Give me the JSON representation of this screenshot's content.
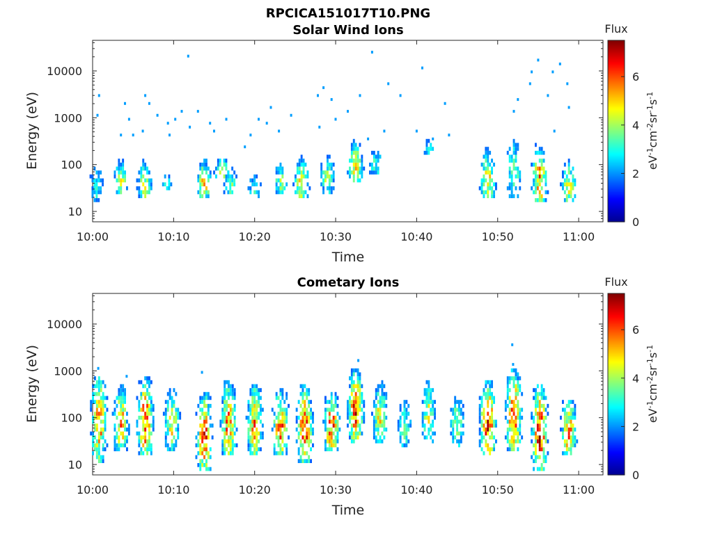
{
  "figure_title": "RPCICA151017T10.PNG",
  "colormap": [
    "#00008f",
    "#0000ff",
    "#0080ff",
    "#00ffff",
    "#80ff80",
    "#ffff00",
    "#ff8000",
    "#ff0000",
    "#800000"
  ],
  "chart_data": [
    {
      "type": "heatmap",
      "title": "Solar Wind Ions",
      "xlabel": "Time",
      "ylabel": "Energy (eV)",
      "x_ticks": [
        "10:00",
        "10:10",
        "10:20",
        "10:30",
        "10:40",
        "10:50",
        "11:00"
      ],
      "x_range_minutes": [
        0,
        63
      ],
      "y_scale": "log",
      "y_ticks": [
        10,
        100,
        1000,
        10000
      ],
      "y_tick_labels": [
        "10",
        "100",
        "1000",
        "10000"
      ],
      "y_range": [
        6,
        45000
      ],
      "colorbar": {
        "title": "Flux",
        "unit": "eV-1cm-2sr-1s-1",
        "ticks": [
          0,
          2,
          4,
          6
        ],
        "range": [
          0,
          7.5
        ]
      },
      "clusters": [
        {
          "t": 0.5,
          "e_lo": 15,
          "e_hi": 120,
          "peak": 3.2
        },
        {
          "t": 3.5,
          "e_lo": 25,
          "e_hi": 120,
          "peak": 4.5
        },
        {
          "t": 6.5,
          "e_lo": 18,
          "e_hi": 110,
          "peak": 5.0
        },
        {
          "t": 9.2,
          "e_lo": 30,
          "e_hi": 70,
          "peak": 3.0
        },
        {
          "t": 13.8,
          "e_lo": 20,
          "e_hi": 120,
          "peak": 5.2
        },
        {
          "t": 16.0,
          "e_lo": 50,
          "e_hi": 140,
          "peak": 4.8
        },
        {
          "t": 17.0,
          "e_lo": 25,
          "e_hi": 90,
          "peak": 4.0
        },
        {
          "t": 20.0,
          "e_lo": 20,
          "e_hi": 70,
          "peak": 3.2
        },
        {
          "t": 23.2,
          "e_lo": 25,
          "e_hi": 110,
          "peak": 4.2
        },
        {
          "t": 25.8,
          "e_lo": 20,
          "e_hi": 120,
          "peak": 5.5
        },
        {
          "t": 29.0,
          "e_lo": 25,
          "e_hi": 150,
          "peak": 4.2
        },
        {
          "t": 32.5,
          "e_lo": 40,
          "e_hi": 280,
          "peak": 5.6
        },
        {
          "t": 35.0,
          "e_lo": 60,
          "e_hi": 250,
          "peak": 3.5
        },
        {
          "t": 41.5,
          "e_lo": 150,
          "e_hi": 400,
          "peak": 3.0
        },
        {
          "t": 48.8,
          "e_lo": 18,
          "e_hi": 180,
          "peak": 5.2
        },
        {
          "t": 52.0,
          "e_lo": 20,
          "e_hi": 350,
          "peak": 4.2
        },
        {
          "t": 55.2,
          "e_lo": 15,
          "e_hi": 220,
          "peak": 6.0
        },
        {
          "t": 58.8,
          "e_lo": 15,
          "e_hi": 120,
          "peak": 4.8
        }
      ],
      "scatter": [
        [
          0.8,
          3000
        ],
        [
          0.6,
          1150
        ],
        [
          4.0,
          2200
        ],
        [
          4.5,
          1000
        ],
        [
          6.5,
          2800
        ],
        [
          7.0,
          2000
        ],
        [
          8.0,
          1200
        ],
        [
          9.3,
          800
        ],
        [
          10.2,
          1000
        ],
        [
          11.8,
          20000
        ],
        [
          11.0,
          1500
        ],
        [
          13.0,
          1500
        ],
        [
          14.5,
          700
        ],
        [
          16.5,
          1000
        ],
        [
          18.8,
          250
        ],
        [
          20.5,
          1000
        ],
        [
          22.0,
          1800
        ],
        [
          24.5,
          1100
        ],
        [
          27.8,
          3000
        ],
        [
          28.5,
          4500
        ],
        [
          29.5,
          2700
        ],
        [
          31.5,
          1500
        ],
        [
          33.0,
          3000
        ],
        [
          34.5,
          24000
        ],
        [
          36.5,
          5500
        ],
        [
          38.0,
          3200
        ],
        [
          40.7,
          12500
        ],
        [
          43.5,
          2200
        ],
        [
          54.0,
          5000
        ],
        [
          54.2,
          10500
        ],
        [
          55.0,
          18000
        ],
        [
          56.2,
          3000
        ],
        [
          56.8,
          10000
        ],
        [
          57.7,
          15000
        ],
        [
          58.6,
          5000
        ],
        [
          58.8,
          1600
        ],
        [
          52.5,
          2400
        ],
        [
          52.0,
          1500
        ],
        [
          3.5,
          400
        ],
        [
          5.0,
          450
        ],
        [
          6.2,
          550
        ],
        [
          9.5,
          400
        ],
        [
          12.0,
          600
        ],
        [
          15.0,
          550
        ],
        [
          19.5,
          450
        ],
        [
          21.5,
          750
        ],
        [
          23.0,
          500
        ],
        [
          28.0,
          600
        ],
        [
          30.0,
          900
        ],
        [
          34.0,
          350
        ],
        [
          36.0,
          500
        ],
        [
          40.0,
          550
        ],
        [
          42.0,
          350
        ],
        [
          44.0,
          400
        ],
        [
          57.0,
          550
        ]
      ]
    },
    {
      "type": "heatmap",
      "title": "Cometary Ions",
      "xlabel": "Time",
      "ylabel": "Energy (eV)",
      "x_ticks": [
        "10:00",
        "10:10",
        "10:20",
        "10:30",
        "10:40",
        "10:50",
        "11:00"
      ],
      "x_range_minutes": [
        0,
        63
      ],
      "y_scale": "log",
      "y_ticks": [
        10,
        100,
        1000,
        10000
      ],
      "y_tick_labels": [
        "10",
        "100",
        "1000",
        "10000"
      ],
      "y_range": [
        6,
        45000
      ],
      "colorbar": {
        "title": "Flux",
        "unit": "eV-1cm-2sr-1s-1",
        "ticks": [
          0,
          2,
          4,
          6
        ],
        "range": [
          0,
          7.5
        ]
      },
      "clusters": [
        {
          "t": 0.8,
          "e_lo": 12,
          "e_hi": 800,
          "peak": 6.0
        },
        {
          "t": 3.5,
          "e_lo": 18,
          "e_hi": 400,
          "peak": 5.8
        },
        {
          "t": 6.5,
          "e_lo": 15,
          "e_hi": 600,
          "peak": 6.8
        },
        {
          "t": 9.8,
          "e_lo": 20,
          "e_hi": 400,
          "peak": 5.2
        },
        {
          "t": 13.8,
          "e_lo": 8,
          "e_hi": 300,
          "peak": 6.6
        },
        {
          "t": 16.8,
          "e_lo": 15,
          "e_hi": 500,
          "peak": 6.2
        },
        {
          "t": 20.0,
          "e_lo": 15,
          "e_hi": 500,
          "peak": 6.0
        },
        {
          "t": 23.2,
          "e_lo": 15,
          "e_hi": 350,
          "peak": 6.4
        },
        {
          "t": 26.2,
          "e_lo": 12,
          "e_hi": 400,
          "peak": 6.8
        },
        {
          "t": 29.5,
          "e_lo": 20,
          "e_hi": 300,
          "peak": 6.5
        },
        {
          "t": 32.5,
          "e_lo": 30,
          "e_hi": 1000,
          "peak": 6.8
        },
        {
          "t": 35.5,
          "e_lo": 30,
          "e_hi": 500,
          "peak": 5.0
        },
        {
          "t": 38.5,
          "e_lo": 25,
          "e_hi": 250,
          "peak": 4.0
        },
        {
          "t": 41.5,
          "e_lo": 30,
          "e_hi": 600,
          "peak": 4.6
        },
        {
          "t": 45.0,
          "e_lo": 25,
          "e_hi": 300,
          "peak": 4.4
        },
        {
          "t": 48.8,
          "e_lo": 15,
          "e_hi": 500,
          "peak": 7.2
        },
        {
          "t": 52.0,
          "e_lo": 20,
          "e_hi": 900,
          "peak": 6.8
        },
        {
          "t": 55.2,
          "e_lo": 8,
          "e_hi": 400,
          "peak": 7.2
        },
        {
          "t": 58.8,
          "e_lo": 15,
          "e_hi": 250,
          "peak": 6.0
        }
      ],
      "scatter": [
        [
          0.7,
          1150
        ],
        [
          4.2,
          800
        ],
        [
          13.5,
          1000
        ],
        [
          32.8,
          1700
        ],
        [
          51.8,
          3500
        ],
        [
          51.9,
          1500
        ]
      ]
    }
  ]
}
